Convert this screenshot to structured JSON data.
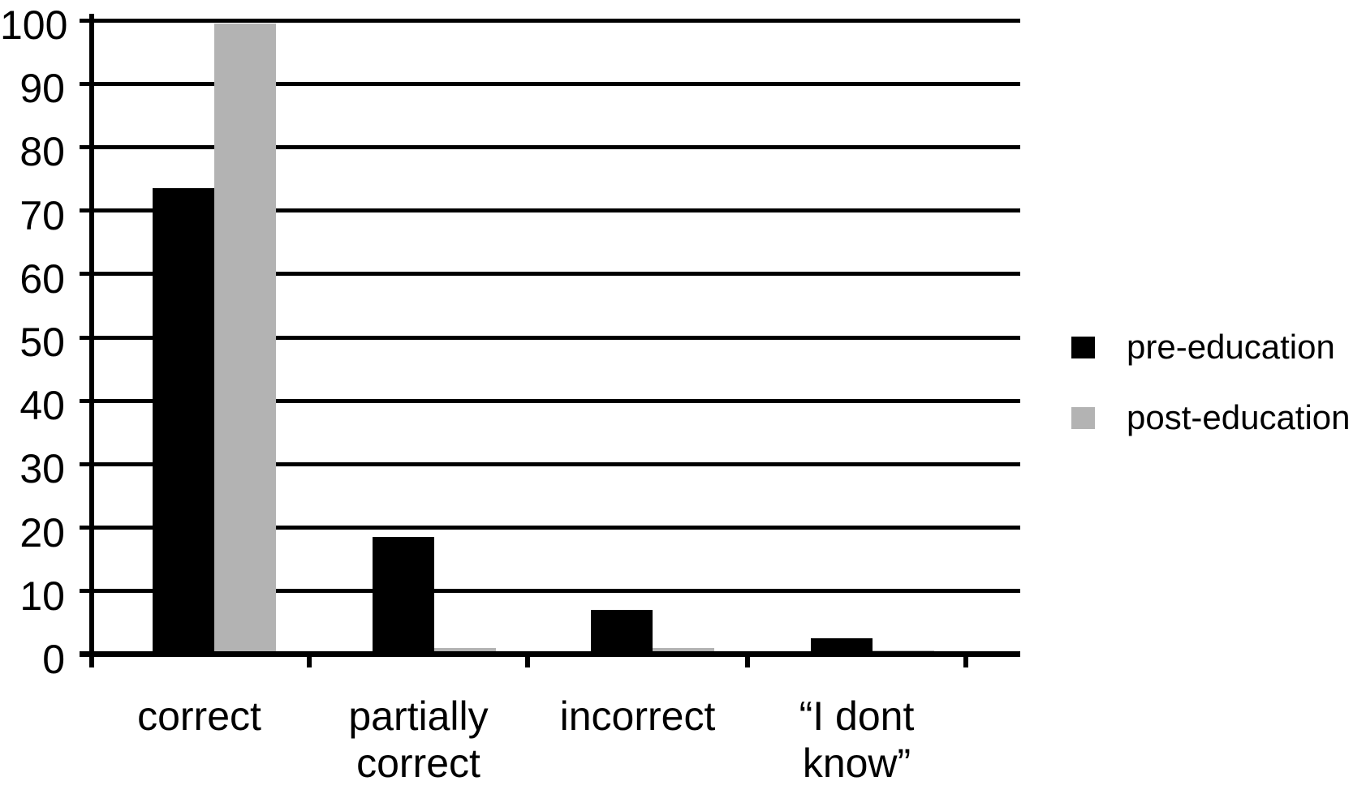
{
  "chart_data": {
    "type": "bar",
    "title": "",
    "xlabel": "",
    "ylabel": "",
    "categories": [
      "correct",
      "partially correct",
      "incorrect",
      "“I dont know”"
    ],
    "category_label_lines": [
      [
        "correct"
      ],
      [
        "partially",
        "correct"
      ],
      [
        "incorrect"
      ],
      [
        "“I dont",
        "know”"
      ]
    ],
    "series": [
      {
        "name": "pre-education",
        "color": "#000000",
        "values": [
          73.5,
          18.5,
          7,
          2.5
        ]
      },
      {
        "name": "post-education",
        "color": "#b3b3b3",
        "values": [
          99.5,
          1,
          1,
          0.7
        ]
      }
    ],
    "ylim": [
      0,
      100
    ],
    "ytick_step": 10,
    "ytick_labels": [
      "0",
      "10",
      "20",
      "30",
      "40",
      "50",
      "60",
      "70",
      "80",
      "90",
      "100"
    ],
    "grid": "horizontal",
    "legend_position": "right"
  },
  "colors": {
    "axis": "#000000",
    "background": "#ffffff",
    "pre_education_bar": "#000000",
    "post_education_bar": "#b3b3b3"
  }
}
